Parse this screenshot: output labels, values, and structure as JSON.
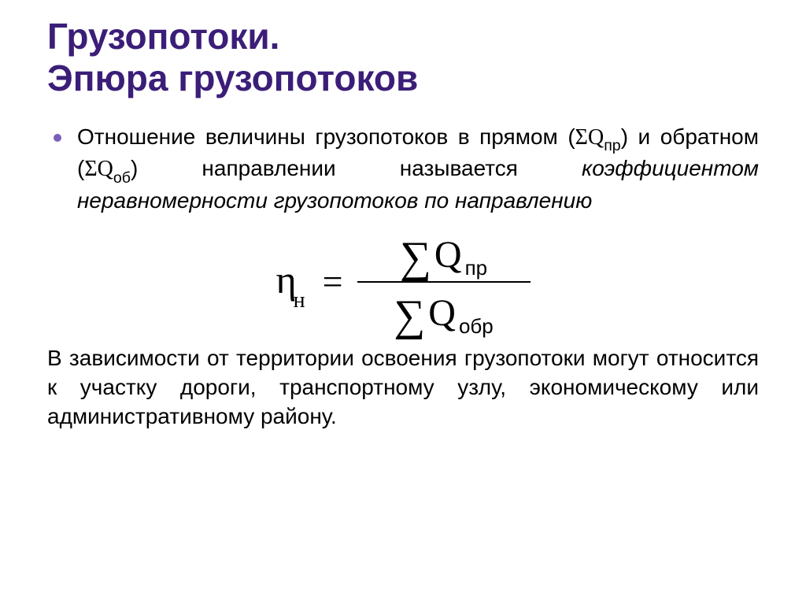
{
  "title_line1": "Грузопотоки.",
  "title_line2": "Эпюра грузопотоков",
  "bullet": {
    "part1": "Отношение величины грузопотоков в прямом (",
    "sigma1": "Σ",
    "q1": "Q",
    "q1_sub": "пр",
    "part2": ") и обратном (",
    "sigma2": "Σ",
    "q2": "Q",
    "q2_sub": "об",
    "part3": ") направлении называется ",
    "italic": "коэффициентом неравномерности грузопотоков по направлению"
  },
  "formula": {
    "eta": "η",
    "eta_sub": "н",
    "equals": "=",
    "num_sigma": "∑",
    "num_Q": "Q",
    "num_sub": "пр",
    "den_sigma": "∑",
    "den_Q": "Q",
    "den_sub": "обр"
  },
  "trailing": "В зависимости от территории освоения грузопотоки могут относится к участку дороги, транспортному узлу, экономическому или административному району.",
  "colors": {
    "title": "#3b1e78",
    "bullet": "#7a5fb8",
    "text": "#000000",
    "background": "#ffffff"
  },
  "fonts": {
    "title_size_pt": 34,
    "body_size_pt": 21,
    "formula_size_pt": 36,
    "title_weight": 700
  }
}
